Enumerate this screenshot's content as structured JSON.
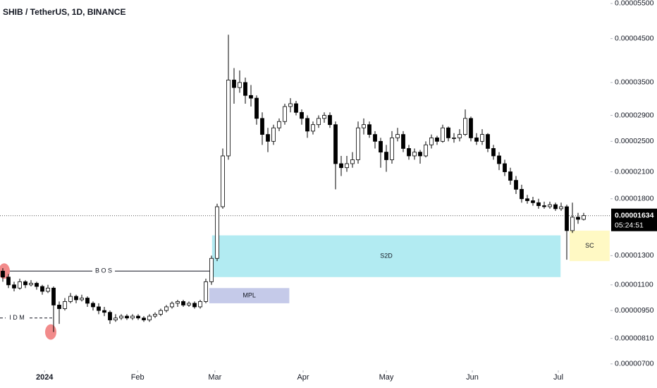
{
  "chart_data": {
    "type": "candlestick",
    "title": "SHIB / TetherUS, 1D, BINANCE",
    "log_scale": true,
    "ylim": [
      6.8e-06,
      5.61e-05
    ],
    "yticks": [
      {
        "value": 5.5e-05,
        "label": "0.00005500"
      },
      {
        "value": 4.5e-05,
        "label": "0.00004500"
      },
      {
        "value": 3.5e-05,
        "label": "0.00003500"
      },
      {
        "value": 2.9e-05,
        "label": "0.00002900"
      },
      {
        "value": 2.5e-05,
        "label": "0.00002500"
      },
      {
        "value": 2.1e-05,
        "label": "0.00002100"
      },
      {
        "value": 1.8e-05,
        "label": "0.00001800"
      },
      {
        "value": 1.3e-05,
        "label": "0.00001300"
      },
      {
        "value": 1.1e-05,
        "label": "0.00001100"
      },
      {
        "value": 9.5e-06,
        "label": "0.00000950"
      },
      {
        "value": 8.1e-06,
        "label": "0.00000810"
      },
      {
        "value": 7e-06,
        "label": "0.00000700"
      }
    ],
    "xlim": [
      -0.5,
      107.75
    ],
    "xticks": [
      {
        "value": 7.4,
        "label": "2024"
      },
      {
        "value": 23.9,
        "label": "Feb"
      },
      {
        "value": 37.6,
        "label": "Mar"
      },
      {
        "value": 53.25,
        "label": "Apr"
      },
      {
        "value": 68,
        "label": "May"
      },
      {
        "value": 83.25,
        "label": "Jun"
      },
      {
        "value": 98.5,
        "label": "Jul"
      }
    ],
    "up_color": "#ffffff",
    "down_color": "#000000",
    "edge_color": "#000000",
    "ohlc": [
      [
        1.19e-05,
        1.21e-05,
        1.12e-05,
        1.15e-05
      ],
      [
        1.15e-05,
        1.17e-05,
        1.08e-05,
        1.1e-05
      ],
      [
        1.1e-05,
        1.12e-05,
        1.06e-05,
        1.08e-05
      ],
      [
        1.08e-05,
        1.14e-05,
        1.07e-05,
        1.12e-05
      ],
      [
        1.12e-05,
        1.13e-05,
        1.08e-05,
        1.1e-05
      ],
      [
        1.1e-05,
        1.13e-05,
        1.09e-05,
        1.11e-05
      ],
      [
        1.11e-05,
        1.12e-05,
        1.07e-05,
        1.09e-05
      ],
      [
        1.09e-05,
        1.1e-05,
        1.04e-05,
        1.06e-05
      ],
      [
        1.06e-05,
        1.1e-05,
        1.05e-05,
        1.08e-05
      ],
      [
        1.08e-05,
        1.09e-05,
        8.4e-06,
        9.8e-06
      ],
      [
        9.8e-06,
        1e-05,
        8.8e-06,
        9.6e-06
      ],
      [
        9.6e-06,
        1.02e-05,
        9.5e-06,
        1e-05
      ],
      [
        1e-05,
        1.05e-05,
        9.9e-06,
        1.03e-05
      ],
      [
        1.03e-05,
        1.04e-05,
        9.9e-06,
        1.01e-05
      ],
      [
        1.01e-05,
        1.04e-05,
        1e-05,
        1.02e-05
      ],
      [
        1.02e-05,
        1.03e-05,
        9.7e-06,
        9.9e-06
      ],
      [
        9.9e-06,
        1e-05,
        9.5e-06,
        9.7e-06
      ],
      [
        9.7e-06,
        9.9e-06,
        9.3e-06,
        9.5e-06
      ],
      [
        9.5e-06,
        9.7e-06,
        9.2e-06,
        9.4e-06
      ],
      [
        9.4e-06,
        9.5e-06,
        8.8e-06,
        9e-06
      ],
      [
        9e-06,
        9.3e-06,
        8.9e-06,
        9.1e-06
      ],
      [
        9.1e-06,
        9.3e-06,
        9e-06,
        9.2e-06
      ],
      [
        9.2e-06,
        9.3e-06,
        9e-06,
        9.1e-06
      ],
      [
        9.1e-06,
        9.3e-06,
        9e-06,
        9.2e-06
      ],
      [
        9.2e-06,
        9.3e-06,
        9e-06,
        9.1e-06
      ],
      [
        9.1e-06,
        9.2e-06,
        8.9e-06,
        9e-06
      ],
      [
        9e-06,
        9.3e-06,
        8.9e-06,
        9.2e-06
      ],
      [
        9.2e-06,
        9.4e-06,
        9.1e-06,
        9.3e-06
      ],
      [
        9.3e-06,
        9.6e-06,
        9.2e-06,
        9.5e-06
      ],
      [
        9.5e-06,
        9.8e-06,
        9.4e-06,
        9.7e-06
      ],
      [
        9.7e-06,
        1e-05,
        9.6e-06,
        9.9e-06
      ],
      [
        9.9e-06,
        1.01e-05,
        9.7e-06,
        1e-05
      ],
      [
        1e-05,
        1.01e-05,
        9.7e-06,
        9.8e-06
      ],
      [
        9.8e-06,
        1e-05,
        9.7e-06,
        9.9e-06
      ],
      [
        9.9e-06,
        1e-05,
        9.6e-06,
        9.7e-06
      ],
      [
        9.7e-06,
        1.01e-05,
        9.6e-06,
        1e-05
      ],
      [
        1e-05,
        1.14e-05,
        9.9e-06,
        1.12e-05
      ],
      [
        1.12e-05,
        1.3e-05,
        1.1e-05,
        1.28e-05
      ],
      [
        1.28e-05,
        1.75e-05,
        1.26e-05,
        1.72e-05
      ],
      [
        1.72e-05,
        2.4e-05,
        1.7e-05,
        2.3e-05
      ],
      [
        2.3e-05,
        4.6e-05,
        2.25e-05,
        3.55e-05
      ],
      [
        3.55e-05,
        3.8e-05,
        3.1e-05,
        3.4e-05
      ],
      [
        3.4e-05,
        3.75e-05,
        3.3e-05,
        3.5e-05
      ],
      [
        3.5e-05,
        3.6e-05,
        3.1e-05,
        3.25e-05
      ],
      [
        3.25e-05,
        3.45e-05,
        3.05e-05,
        3.2e-05
      ],
      [
        3.2e-05,
        3.25e-05,
        2.75e-05,
        2.85e-05
      ],
      [
        2.85e-05,
        2.95e-05,
        2.45e-05,
        2.6e-05
      ],
      [
        2.6e-05,
        2.7e-05,
        2.35e-05,
        2.5e-05
      ],
      [
        2.5e-05,
        2.75e-05,
        2.45e-05,
        2.7e-05
      ],
      [
        2.7e-05,
        2.85e-05,
        2.65e-05,
        2.8e-05
      ],
      [
        2.8e-05,
        3.1e-05,
        2.75e-05,
        3.05e-05
      ],
      [
        3.05e-05,
        3.2e-05,
        2.95e-05,
        3.1e-05
      ],
      [
        3.1e-05,
        3.15e-05,
        2.9e-05,
        2.95e-05
      ],
      [
        2.95e-05,
        3e-05,
        2.75e-05,
        2.85e-05
      ],
      [
        2.85e-05,
        2.9e-05,
        2.55e-05,
        2.65e-05
      ],
      [
        2.65e-05,
        2.8e-05,
        2.6e-05,
        2.75e-05
      ],
      [
        2.75e-05,
        2.9e-05,
        2.7e-05,
        2.85e-05
      ],
      [
        2.85e-05,
        2.95e-05,
        2.78e-05,
        2.9e-05
      ],
      [
        2.9e-05,
        2.95e-05,
        2.7e-05,
        2.75e-05
      ],
      [
        2.75e-05,
        2.8e-05,
        1.9e-05,
        2.2e-05
      ],
      [
        2.2e-05,
        2.3e-05,
        2.05e-05,
        2.15e-05
      ],
      [
        2.15e-05,
        2.3e-05,
        2.1e-05,
        2.2e-05
      ],
      [
        2.2e-05,
        2.35e-05,
        2.15e-05,
        2.25e-05
      ],
      [
        2.25e-05,
        2.8e-05,
        2.2e-05,
        2.7e-05
      ],
      [
        2.7e-05,
        2.85e-05,
        2.6e-05,
        2.75e-05
      ],
      [
        2.75e-05,
        2.8e-05,
        2.55e-05,
        2.6e-05
      ],
      [
        2.6e-05,
        2.65e-05,
        2.4e-05,
        2.5e-05
      ],
      [
        2.5e-05,
        2.55e-05,
        2.15e-05,
        2.35e-05
      ],
      [
        2.35e-05,
        2.45e-05,
        2.1e-05,
        2.25e-05
      ],
      [
        2.25e-05,
        2.65e-05,
        2.2e-05,
        2.55e-05
      ],
      [
        2.55e-05,
        2.7e-05,
        2.5e-05,
        2.6e-05
      ],
      [
        2.6e-05,
        2.65e-05,
        2.35e-05,
        2.4e-05
      ],
      [
        2.4e-05,
        2.45e-05,
        2.25e-05,
        2.3e-05
      ],
      [
        2.3e-05,
        2.4e-05,
        2.25e-05,
        2.35e-05
      ],
      [
        2.35e-05,
        2.38e-05,
        2.2e-05,
        2.3e-05
      ],
      [
        2.3e-05,
        2.5e-05,
        2.28e-05,
        2.45e-05
      ],
      [
        2.45e-05,
        2.6e-05,
        2.4e-05,
        2.55e-05
      ],
      [
        2.55e-05,
        2.58e-05,
        2.45e-05,
        2.5e-05
      ],
      [
        2.5e-05,
        2.75e-05,
        2.48e-05,
        2.7e-05
      ],
      [
        2.7e-05,
        2.72e-05,
        2.5e-05,
        2.55e-05
      ],
      [
        2.55e-05,
        2.62e-05,
        2.48e-05,
        2.55e-05
      ],
      [
        2.55e-05,
        2.68e-05,
        2.5e-05,
        2.6e-05
      ],
      [
        2.6e-05,
        3e-05,
        2.58e-05,
        2.85e-05
      ],
      [
        2.85e-05,
        2.88e-05,
        2.5e-05,
        2.55e-05
      ],
      [
        2.55e-05,
        2.62e-05,
        2.45e-05,
        2.5e-05
      ],
      [
        2.5e-05,
        2.68e-05,
        2.45e-05,
        2.6e-05
      ],
      [
        2.6e-05,
        2.62e-05,
        2.35e-05,
        2.4e-05
      ],
      [
        2.4e-05,
        2.45e-05,
        2.25e-05,
        2.3e-05
      ],
      [
        2.3e-05,
        2.35e-05,
        2.12e-05,
        2.2e-05
      ],
      [
        2.2e-05,
        2.25e-05,
        2.05e-05,
        2.1e-05
      ],
      [
        2.1e-05,
        2.15e-05,
        1.95e-05,
        2e-05
      ],
      [
        2e-05,
        2.05e-05,
        1.85e-05,
        1.9e-05
      ],
      [
        1.9e-05,
        1.95e-05,
        1.76e-05,
        1.8e-05
      ],
      [
        1.8e-05,
        1.84e-05,
        1.75e-05,
        1.78e-05
      ],
      [
        1.78e-05,
        1.82e-05,
        1.73e-05,
        1.76e-05
      ],
      [
        1.76e-05,
        1.8e-05,
        1.7e-05,
        1.73e-05
      ],
      [
        1.73e-05,
        1.77e-05,
        1.7e-05,
        1.72e-05
      ],
      [
        1.72e-05,
        1.77e-05,
        1.7e-05,
        1.74e-05
      ],
      [
        1.74e-05,
        1.76e-05,
        1.68e-05,
        1.7e-05
      ],
      [
        1.7e-05,
        1.76e-05,
        1.68e-05,
        1.72e-05
      ],
      [
        1.72e-05,
        1.74e-05,
        1.27e-05,
        1.5e-05
      ],
      [
        1.5e-05,
        1.76e-05,
        1.48e-05,
        1.62e-05
      ],
      [
        1.62e-05,
        1.66e-05,
        1.56e-05,
        1.6e-05
      ],
      [
        1.6e-05,
        1.66e-05,
        1.59e-05,
        1.634e-05
      ]
    ],
    "last_price": {
      "value": 1.634e-05,
      "label": "0.00001634"
    },
    "countdown": "05:24:51",
    "zones": [
      {
        "label": "S2D",
        "top": 1.46e-05,
        "bottom": 1.15e-05,
        "start": 37.1,
        "end": 98.9,
        "color": "#b2ebf2"
      },
      {
        "label": "MPL",
        "top": 1.08e-05,
        "bottom": 9.9e-06,
        "start": 36.6,
        "end": 50.8,
        "color": "#c5cae9"
      },
      {
        "label": "SC",
        "top": 1.5e-05,
        "bottom": 1.26e-05,
        "start": 100.5,
        "end": 107.6,
        "color": "#fff9c4"
      }
    ],
    "levels": [
      {
        "label": "B O S",
        "value": 1.19e-05,
        "start": -0.5,
        "end": 37,
        "dashed": false
      },
      {
        "label": "I D M",
        "value": 9.1e-06,
        "start": -0.5,
        "end": 8.9,
        "dashed": true
      }
    ],
    "markers": [
      {
        "x": 0.25,
        "y": 1.19e-05
      },
      {
        "x": 8.5,
        "y": 8.4e-06
      }
    ],
    "marker_color": "#f28b8b"
  }
}
